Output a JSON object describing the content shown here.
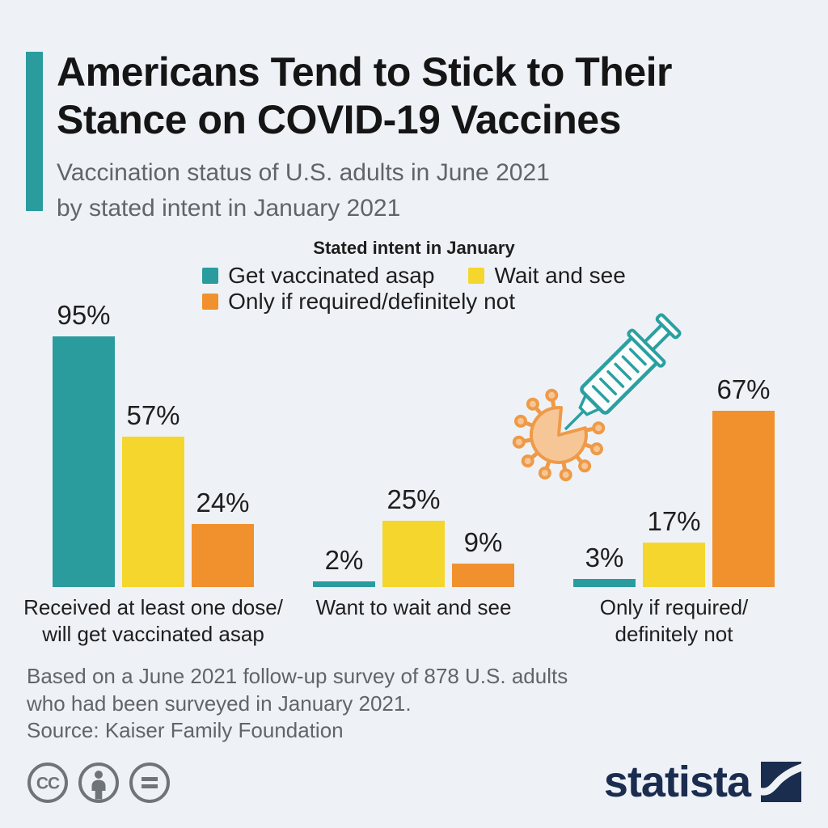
{
  "header": {
    "title": "Americans Tend to Stick to Their\nStance on COVID-19 Vaccines",
    "subtitle": "Vaccination status of U.S. adults in June 2021\nby stated intent in January 2021"
  },
  "chart_data": {
    "type": "bar",
    "legend_title": "Stated intent in January",
    "legend_position": "top-center",
    "grid": false,
    "value_suffix": "%",
    "ylim": [
      0,
      100
    ],
    "categories": [
      "Received at least one dose/\nwill get vaccinated asap",
      "Want to wait and see",
      "Only if required/\ndefinitely not"
    ],
    "series": [
      {
        "name": "Get vaccinated asap",
        "color": "#2a9c9e",
        "values": [
          95,
          2,
          3
        ]
      },
      {
        "name": "Wait and see",
        "color": "#f5d62d",
        "values": [
          57,
          25,
          17
        ]
      },
      {
        "name": "Only if required/definitely not",
        "color": "#f0912d",
        "values": [
          24,
          9,
          67
        ]
      }
    ]
  },
  "footer": {
    "note": "Based on a June 2021 follow-up survey of 878 U.S. adults\nwho had been surveyed in January 2021.",
    "source": "Source: Kaiser Family Foundation"
  },
  "branding": {
    "logo_text": "statista",
    "license_icons": [
      "cc-icon",
      "attribution-icon",
      "no-derivatives-icon"
    ]
  },
  "illustration": {
    "name": "syringe-injecting-virus",
    "syringe_color": "#2aa0a2",
    "virus_color": "#ef9a47"
  },
  "colors": {
    "background": "#eef2f7",
    "accent": "#2a9c9e",
    "title_text": "#151515",
    "muted_text": "#5f6569",
    "brand_navy": "#1b2d4f",
    "license_gray": "#6e7478"
  }
}
